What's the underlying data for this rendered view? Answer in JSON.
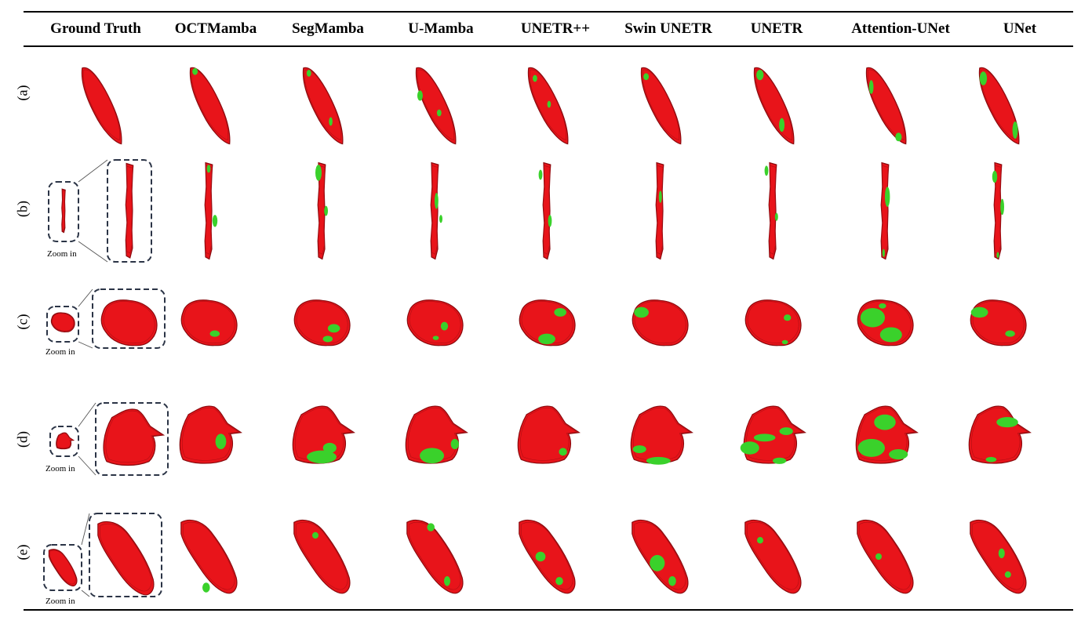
{
  "columns": [
    "Ground Truth",
    "OCTMamba",
    "SegMamba",
    "U-Mamba",
    "UNETR++",
    "Swin UNETR",
    "UNETR",
    "Attention-UNet",
    "UNet"
  ],
  "rows": [
    "(a)",
    "(b)",
    "(c)",
    "(d)",
    "(e)"
  ],
  "zoom_label": "Zoom in",
  "colors": {
    "ground_truth": "#e8141a",
    "error": "#3ad12b",
    "frame": "#2b3446"
  }
}
